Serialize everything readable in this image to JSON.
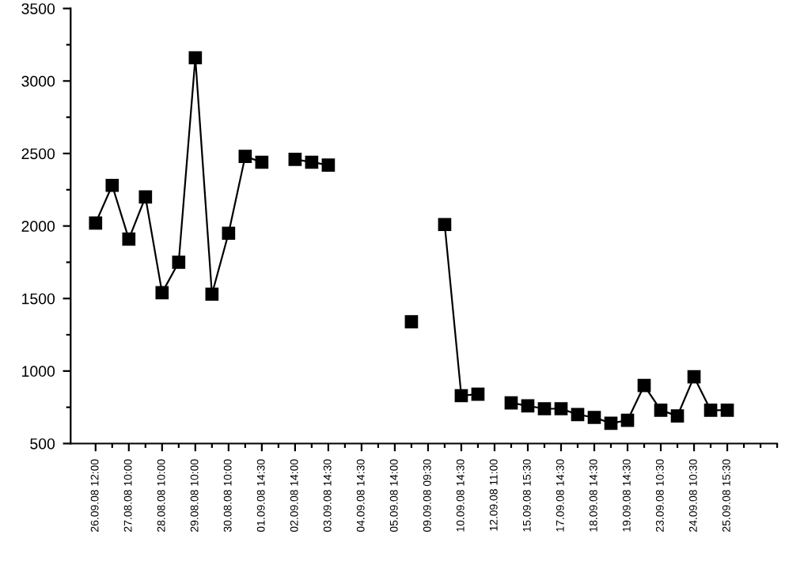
{
  "chart_data": {
    "type": "line",
    "categories": [
      "26.09.08 12:00",
      null,
      "27.08.08 10:00",
      null,
      "28.08.08 10:00",
      null,
      "29.08.08 10:00",
      null,
      "30.08.08 10:00",
      null,
      "01.09.08 14:30",
      null,
      "02.09.08 14:00",
      null,
      "03.09.08 14:30",
      null,
      "04.09.08 14:30",
      null,
      "05.09.08 14:00",
      null,
      "09.09.08 09:30",
      null,
      "10.09.08 14:30",
      null,
      "12.09.08 11:00",
      null,
      "15.09.08 15:30",
      null,
      "17.09.08 14:30",
      null,
      "18.09.08 14:30",
      null,
      "19.09.08 14:30",
      null,
      "23.09.08 10:30",
      null,
      "24.09.08 10:30",
      null,
      "25.09.08 15:30",
      null,
      null,
      null
    ],
    "series": [
      {
        "color": "#000000",
        "values": [
          2020,
          2280,
          1910,
          2200,
          1540,
          1750,
          3160,
          1530,
          1950,
          2480,
          2440,
          null,
          2460,
          2440,
          2420,
          null,
          null,
          null,
          null,
          1340,
          null,
          2010,
          830,
          840,
          null,
          780,
          760,
          740,
          740,
          700,
          680,
          640,
          660,
          900,
          730,
          690,
          960,
          730,
          730,
          null,
          null,
          null
        ]
      }
    ],
    "ylim": [
      500,
      3500
    ],
    "yticks": [
      500,
      {
        "value": 750,
        "label": null
      },
      1000,
      {
        "value": 1250,
        "label": null
      },
      1500,
      {
        "value": 1750,
        "label": null
      },
      2000,
      {
        "value": 2250,
        "label": null
      },
      2500,
      {
        "value": 2750,
        "label": null
      },
      3000,
      {
        "value": 3250,
        "label": null
      },
      3500
    ],
    "marker": "square",
    "line_style": "solid",
    "grid": false,
    "legend": false
  }
}
